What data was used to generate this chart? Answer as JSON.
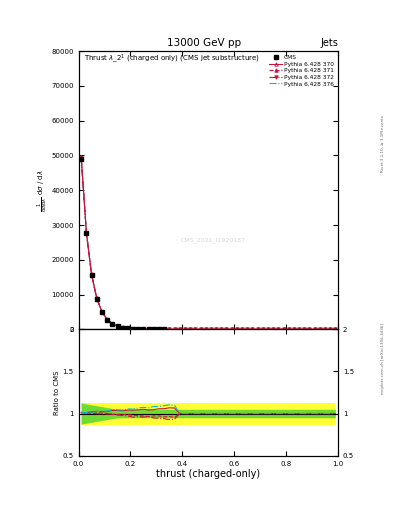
{
  "title_top": "13000 GeV pp",
  "title_right": "Jets",
  "plot_title": "Thrust $\\lambda\\_2^1$ (charged only) (CMS jet substructure)",
  "xlabel": "thrust (charged-only)",
  "ylabel_ratio": "Ratio to CMS",
  "watermark": "CMS_2021_I1920187",
  "right_label": "mcplots.cern.ch [arXiv:1306.3436]",
  "right_label2": "Rivet 3.1.10, ≥ 3.1M events",
  "legend_labels": [
    "CMS",
    "Pythia 6.428 370",
    "Pythia 6.428 371",
    "Pythia 6.428 372",
    "Pythia 6.428 376"
  ],
  "ylim_main": [
    0,
    80000
  ],
  "ylim_ratio": [
    0.5,
    2.0
  ],
  "xlim": [
    0.0,
    1.0
  ],
  "yticks_main": [
    0,
    10000,
    20000,
    30000,
    40000,
    50000,
    60000,
    70000,
    80000
  ],
  "ytick_labels_main": [
    "0",
    "10000",
    "20000",
    "30000",
    "40000",
    "50000",
    "60000",
    "70000",
    "80000"
  ],
  "yticks_ratio": [
    0.5,
    1.0,
    1.5,
    2.0
  ],
  "ytick_labels_ratio": [
    "0.5",
    "1",
    "1.5",
    "2"
  ],
  "bg_color": "#ffffff",
  "cms_color": "#000000",
  "py_colors": [
    "#c8143c",
    "#c8143c",
    "#c8143c",
    "#00bcd4"
  ],
  "py_styles": [
    "-",
    "--",
    "-.",
    "-."
  ],
  "py_markers": [
    "^",
    "^",
    "v",
    ""
  ],
  "py_marker_filled": [
    false,
    true,
    true,
    false
  ]
}
